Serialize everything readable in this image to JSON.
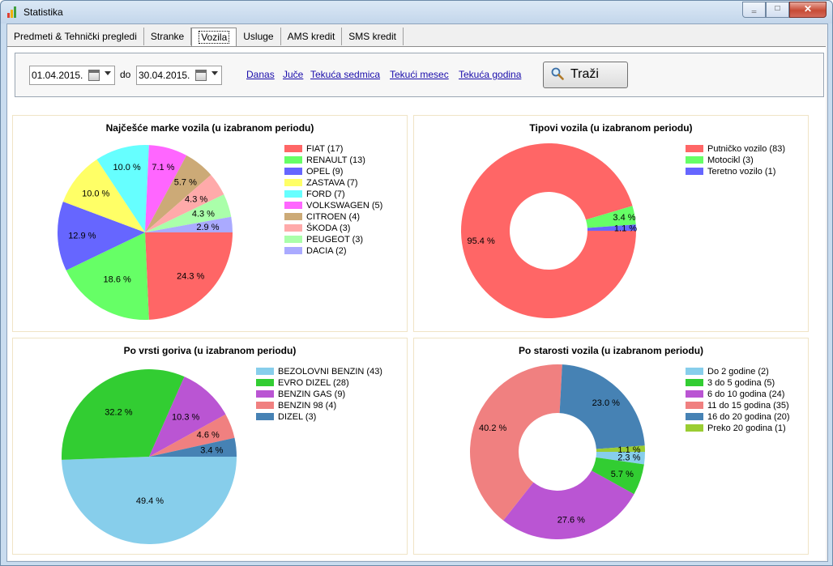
{
  "window": {
    "title": "Statistika",
    "min_glyph": "‗",
    "max_glyph": "□",
    "close_glyph": "✕"
  },
  "tabs": [
    {
      "label": "Predmeti & Tehnički pregledi"
    },
    {
      "label": "Stranke"
    },
    {
      "label": "Vozila"
    },
    {
      "label": "Usluge"
    },
    {
      "label": "AMS kredit"
    },
    {
      "label": "SMS kredit"
    }
  ],
  "active_tab": "Vozila",
  "filter": {
    "date_from": "01.04.2015.",
    "date_to": "30.04.2015.",
    "to_label": "do",
    "quick_links": [
      "Danas",
      "Juče",
      "Tekuća sedmica",
      "Tekući mesec",
      "Tekuća godina"
    ],
    "search_label": "Traži"
  },
  "chart_data": [
    {
      "type": "pie",
      "title": "Najčešće marke vozila (u izabranom periodu)",
      "categories": [
        "FIAT",
        "RENAULT",
        "OPEL",
        "ZASTAVA",
        "FORD",
        "VOLKSWAGEN",
        "CITROEN",
        "ŠKODA",
        "PEUGEOT",
        "DACIA"
      ],
      "values": [
        17,
        13,
        9,
        7,
        7,
        5,
        4,
        3,
        3,
        2
      ],
      "legend": [
        "FIAT (17)",
        "RENAULT (13)",
        "OPEL (9)",
        "ZASTAVA (7)",
        "FORD (7)",
        "VOLKSWAGEN (5)",
        "CITROEN (4)",
        "ŠKODA (3)",
        "PEUGEOT (3)",
        "DACIA (2)"
      ],
      "labels": [
        "24.3 %",
        "18.6 %",
        "12.9 %",
        "10.0 %",
        "10.0 %",
        "7.1 %",
        "5.7 %",
        "4.3 %",
        "4.3 %",
        "2.9 %"
      ],
      "colors": [
        "#ff6666",
        "#66ff66",
        "#6666ff",
        "#ffff66",
        "#66ffff",
        "#ff66ff",
        "#ccaa77",
        "#ffaaaa",
        "#aaffaa",
        "#aaaaff"
      ],
      "donut": false,
      "legend_position": "right"
    },
    {
      "type": "pie",
      "title": "Tipovi vozila (u izabranom periodu)",
      "categories": [
        "Putničko vozilo",
        "Motocikl",
        "Teretno vozilo"
      ],
      "values": [
        83,
        3,
        1
      ],
      "legend": [
        "Putničko vozilo (83)",
        "Motocikl (3)",
        "Teretno vozilo (1)"
      ],
      "labels": [
        "95.4 %",
        "3.4 %",
        "1.1 %"
      ],
      "colors": [
        "#ff6666",
        "#66ff66",
        "#6666ff"
      ],
      "donut": true,
      "legend_position": "right"
    },
    {
      "type": "pie",
      "title": "Po vrsti goriva (u izabranom periodu)",
      "categories": [
        "BEZOLOVNI BENZIN",
        "EVRO DIZEL",
        "BENZIN GAS",
        "BENZIN 98",
        "DIZEL"
      ],
      "values": [
        43,
        28,
        9,
        4,
        3
      ],
      "legend": [
        "BEZOLOVNI BENZIN (43)",
        "EVRO DIZEL (28)",
        "BENZIN GAS (9)",
        "BENZIN 98 (4)",
        "DIZEL (3)"
      ],
      "labels": [
        "49.4 %",
        "32.2 %",
        "10.3 %",
        "4.6 %",
        "3.4 %"
      ],
      "colors": [
        "#87ceeb",
        "#32cd32",
        "#ba55d3",
        "#f08080",
        "#4682b4"
      ],
      "donut": false,
      "legend_position": "right"
    },
    {
      "type": "pie",
      "title": "Po starosti vozila (u izabranom periodu)",
      "categories": [
        "Do 2 godine",
        "3 do 5 godina",
        "6 do 10 godina",
        "11 do 15 godina",
        "16 do 20 godina",
        "Preko 20 godina"
      ],
      "values": [
        2,
        5,
        24,
        35,
        20,
        1
      ],
      "legend": [
        "Do 2 godine (2)",
        "3 do 5 godina (5)",
        "6 do 10 godina (24)",
        "11 do 15 godina (35)",
        "16 do 20 godina (20)",
        "Preko 20 godina (1)"
      ],
      "labels": [
        "2.3 %",
        "5.7 %",
        "27.6 %",
        "40.2 %",
        "23.0 %",
        "1.1 %"
      ],
      "colors": [
        "#87ceeb",
        "#32cd32",
        "#ba55d3",
        "#f08080",
        "#4682b4",
        "#9acd32"
      ],
      "donut": true,
      "legend_position": "right"
    }
  ]
}
